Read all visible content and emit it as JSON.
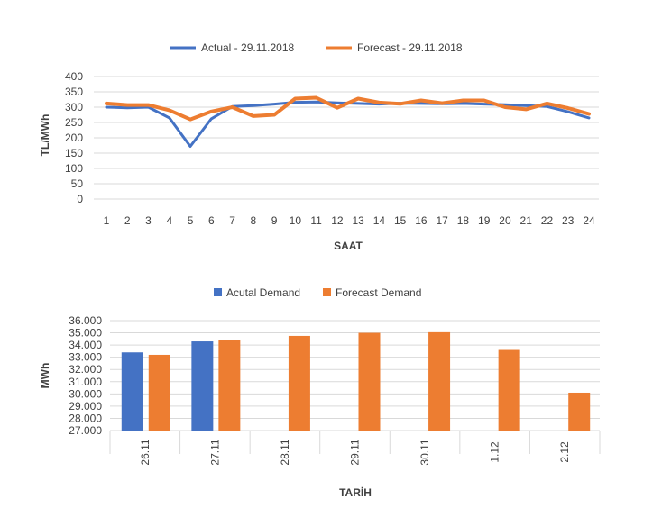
{
  "chart_data": [
    {
      "type": "line",
      "xlabel": "SAAT",
      "ylabel": "TL/MWh",
      "ylim": [
        0,
        400
      ],
      "yticks": [
        0,
        50,
        100,
        150,
        200,
        250,
        300,
        350,
        400
      ],
      "grid": true,
      "legend_position": "top",
      "x": [
        "1",
        "2",
        "3",
        "4",
        "5",
        "6",
        "7",
        "8",
        "9",
        "10",
        "11",
        "12",
        "13",
        "14",
        "15",
        "16",
        "17",
        "18",
        "19",
        "20",
        "21",
        "22",
        "23",
        "24"
      ],
      "series": [
        {
          "name": "Actual - 29.11.2018",
          "color": "#4472C4",
          "values": [
            300,
            298,
            300,
            265,
            172,
            262,
            302,
            305,
            310,
            316,
            317,
            314,
            312,
            310,
            313,
            312,
            311,
            312,
            310,
            308,
            305,
            302,
            285,
            265
          ]
        },
        {
          "name": "Forecast - 29.11.2018",
          "color": "#ED7D31",
          "values": [
            312,
            307,
            307,
            290,
            260,
            286,
            300,
            271,
            275,
            328,
            331,
            298,
            328,
            315,
            311,
            322,
            313,
            322,
            322,
            300,
            293,
            312,
            297,
            278
          ]
        }
      ]
    },
    {
      "type": "bar",
      "xlabel": "TARİH",
      "ylabel": "MWh",
      "ylim": [
        27000,
        36000
      ],
      "yticks": [
        "27.000",
        "28.000",
        "29.000",
        "30.000",
        "31.000",
        "32.000",
        "33.000",
        "34.000",
        "35.000",
        "36.000"
      ],
      "grid": true,
      "legend_position": "top",
      "categories": [
        "26.11",
        "27.11",
        "28.11",
        "29.11",
        "30.11",
        "1.12",
        "2.12"
      ],
      "series": [
        {
          "name": "Acutal Demand",
          "color": "#4472C4",
          "values": [
            33400,
            34300,
            null,
            null,
            null,
            null,
            null
          ]
        },
        {
          "name": "Forecast Demand",
          "color": "#ED7D31",
          "values": [
            33200,
            34400,
            34750,
            35000,
            35050,
            33600,
            30100
          ]
        }
      ]
    }
  ]
}
